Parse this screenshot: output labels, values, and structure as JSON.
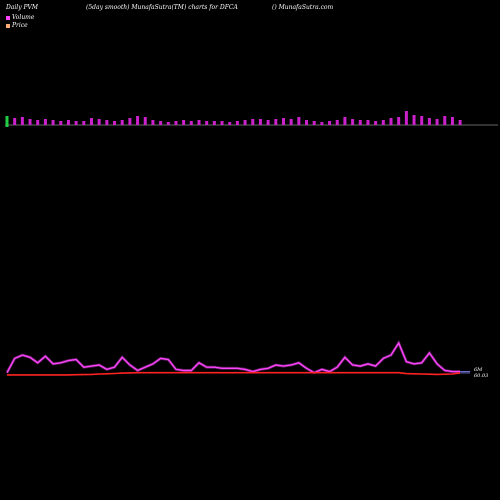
{
  "header": {
    "left": "Daily PVM",
    "middle": "(5day smooth) MunafaSutra(TM) charts for DFCA",
    "right": "() MunafaSutra.com"
  },
  "legend": {
    "volume_label": "Volume",
    "price_label": "Price",
    "volume_color": "#ff44ff",
    "price_color": "#ffaa77"
  },
  "colors": {
    "background": "#000000",
    "volume_bar": "#cc22cc",
    "volume_bar_first": "#22cc44",
    "volume_line": "#ff44ff",
    "price_line": "#ff2222",
    "axis": "#888888"
  },
  "chart_data": [
    {
      "type": "bar",
      "series": [
        {
          "values": [
            9,
            7,
            8,
            6,
            5,
            6,
            5,
            4,
            5,
            4,
            4,
            7,
            6,
            5,
            4,
            5,
            7,
            9,
            8,
            5,
            4,
            3,
            4,
            5,
            4,
            5,
            4,
            4,
            4,
            3,
            4,
            5,
            6,
            6,
            5,
            6,
            7,
            6,
            8,
            5,
            4,
            3,
            4,
            5,
            8,
            6,
            5,
            5,
            4,
            5,
            7,
            8,
            14,
            10,
            9,
            7,
            6,
            9,
            8,
            5
          ]
        }
      ]
    },
    {
      "type": "line",
      "series": [
        {
          "values": [
            3,
            16,
            19,
            17,
            12,
            18,
            11,
            12,
            14,
            15,
            8,
            9,
            10,
            6,
            8,
            17,
            10,
            5,
            8,
            11,
            16,
            15,
            6,
            5,
            5,
            12,
            8,
            8,
            7,
            7,
            7,
            6,
            4,
            6,
            7,
            10,
            9,
            10,
            12,
            7,
            3,
            6,
            4,
            8,
            17,
            10,
            9,
            11,
            9,
            16,
            19,
            30,
            13,
            11,
            12,
            21,
            11,
            5,
            4,
            4
          ]
        },
        {
          "values": [
            1,
            1,
            1,
            1,
            1,
            1,
            1,
            1,
            1,
            1.2,
            1.3,
            1.5,
            1.8,
            2,
            2.3,
            2.6,
            2.8,
            3,
            3,
            3,
            3,
            3,
            3,
            3,
            3,
            3,
            3,
            3,
            3,
            3,
            3,
            3,
            3,
            3,
            3,
            3,
            3,
            3,
            3,
            3,
            3,
            3,
            3,
            3,
            3,
            3,
            3,
            3,
            3,
            3,
            3,
            3,
            2.2,
            2,
            1.8,
            1.6,
            1.5,
            1.6,
            1.8,
            2.8
          ]
        }
      ],
      "end_labels": [
        "6M",
        "60.03"
      ]
    }
  ]
}
